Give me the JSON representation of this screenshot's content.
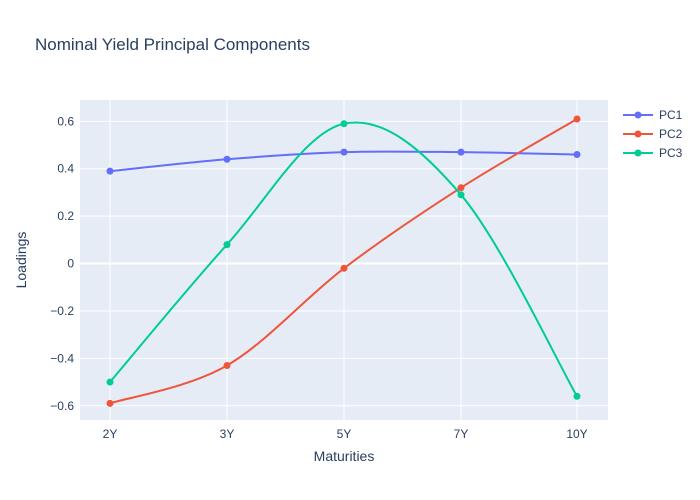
{
  "chart_data": {
    "type": "line",
    "title": "Nominal Yield Principal Components",
    "xlabel": "Maturities",
    "ylabel": "Loadings",
    "categories": [
      "2Y",
      "3Y",
      "5Y",
      "7Y",
      "10Y"
    ],
    "ylim": [
      -0.66,
      0.69
    ],
    "yticks": [
      -0.6,
      -0.4,
      -0.2,
      0,
      0.2,
      0.4,
      0.6
    ],
    "ytick_labels": [
      "−0.6",
      "−0.4",
      "−0.2",
      "0",
      "0.2",
      "0.4",
      "0.6"
    ],
    "grid": true,
    "legend_position": "top-right",
    "series": [
      {
        "name": "PC1",
        "color": "#636efa",
        "values": [
          0.39,
          0.44,
          0.47,
          0.47,
          0.46
        ]
      },
      {
        "name": "PC2",
        "color": "#ef553b",
        "values": [
          -0.59,
          -0.43,
          -0.02,
          0.32,
          0.61
        ]
      },
      {
        "name": "PC3",
        "color": "#00cc96",
        "values": [
          -0.5,
          0.08,
          0.59,
          0.29,
          -0.56
        ]
      }
    ]
  }
}
